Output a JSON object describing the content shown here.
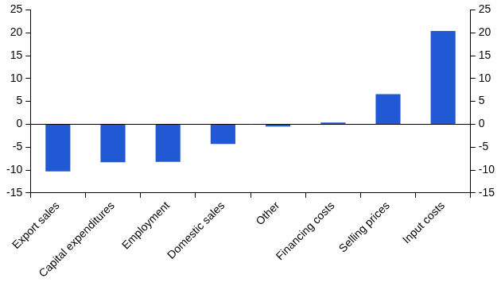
{
  "chart_data": {
    "type": "bar",
    "categories": [
      "Export sales",
      "Capital expenditures",
      "Employment",
      "Domestic sales",
      "Other",
      "Financing costs",
      "Selling prices",
      "Input costs"
    ],
    "values": [
      -10.3,
      -8.3,
      -8.2,
      -4.3,
      -0.5,
      0.4,
      6.6,
      20.4
    ],
    "color": "#2158d4",
    "ylim": [
      -15,
      25
    ],
    "yticks": [
      -15,
      -10,
      -5,
      0,
      5,
      10,
      15,
      20,
      25
    ],
    "y2lim": [
      -15,
      25
    ],
    "y2ticks": [
      -15,
      -10,
      -5,
      0,
      5,
      10,
      15,
      20,
      25
    ],
    "grid": false
  }
}
